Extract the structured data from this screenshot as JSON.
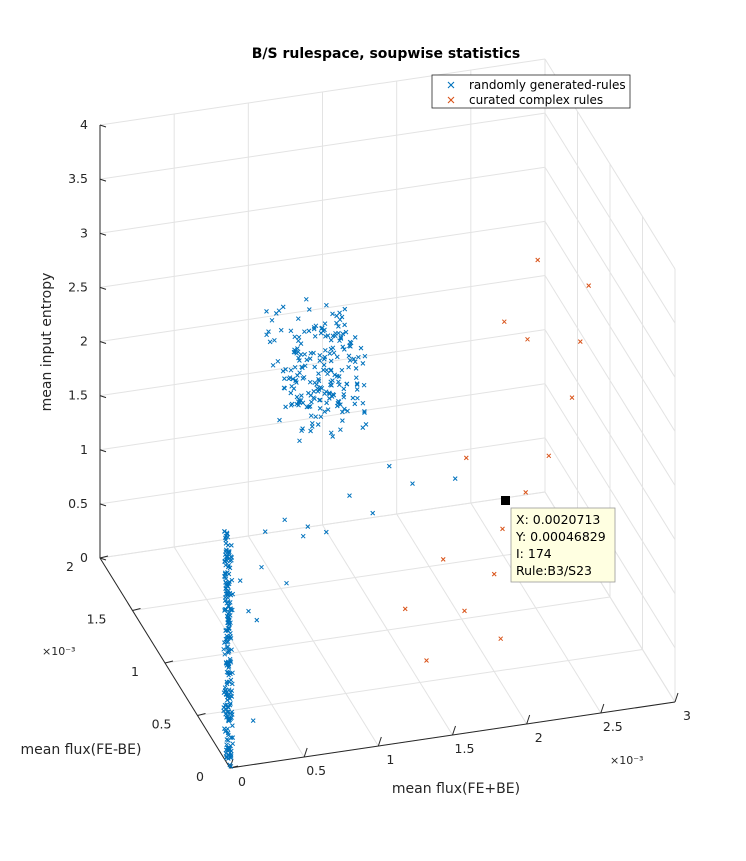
{
  "chart_data": {
    "type": "scatter",
    "projection": "3d",
    "title": "B/S rulespace, soupwise statistics",
    "xlabel": "mean flux(FE+BE)",
    "ylabel": "mean flux(FE-BE)",
    "zlabel": "mean input entropy",
    "x_exponent": "×10⁻³",
    "y_exponent": "×10⁻³",
    "xlim": [
      0,
      3
    ],
    "ylim": [
      0,
      2
    ],
    "zlim": [
      0,
      4
    ],
    "x_ticks": [
      "0",
      "0.5",
      "1",
      "1.5",
      "2",
      "2.5",
      "3"
    ],
    "y_ticks": [
      "0",
      "0.5",
      "1",
      "1.5",
      "2"
    ],
    "z_ticks": [
      "0",
      "0.5",
      "1",
      "1.5",
      "2",
      "2.5",
      "3",
      "3.5",
      "4"
    ],
    "grid": true,
    "legend_position": "top-right",
    "series": [
      {
        "name": "randomly generated-rules",
        "color": "#0072BD",
        "marker": "x",
        "points": [
          [
            0.1,
            0.2,
            0.5
          ],
          [
            0.2,
            0.3,
            1.4
          ],
          [
            0.3,
            0.4,
            1.0
          ],
          [
            0.4,
            0.5,
            0.8
          ],
          [
            0.5,
            0.6,
            1.5
          ],
          [
            0.6,
            0.5,
            1.1
          ],
          [
            0.8,
            0.7,
            1.3
          ],
          [
            1.0,
            0.8,
            1.2
          ],
          [
            1.2,
            0.9,
            1.4
          ],
          [
            1.4,
            1.0,
            1.1
          ],
          [
            0.9,
            1.0,
            2.2
          ],
          [
            1.0,
            1.1,
            2.5
          ],
          [
            1.1,
            1.2,
            2.6
          ],
          [
            1.6,
            1.2,
            1.3
          ],
          [
            1.8,
            1.3,
            1.0
          ],
          [
            2.0,
            1.1,
            1.2
          ],
          [
            0.2,
            0.1,
            0.3
          ],
          [
            0.3,
            0.2,
            1.6
          ],
          [
            0.5,
            0.3,
            1.9
          ],
          [
            0.7,
            0.4,
            1.7
          ]
        ],
        "clusters": [
          {
            "x": [
              0.0,
              0.02
            ],
            "y": [
              0.0,
              0.1
            ],
            "z": [
              0.0,
              2.1
            ],
            "label": "vertical band at mean flux ≈ 0"
          },
          {
            "x": [
              0.8,
              1.3
            ],
            "y": [
              0.8,
              1.3
            ],
            "z": [
              2.0,
              2.9
            ],
            "label": "dense cluster"
          }
        ]
      },
      {
        "name": "curated complex rules",
        "color": "#D95319",
        "marker": "x",
        "points": [
          [
            1.5,
            0.4,
            0.3
          ],
          [
            1.8,
            0.5,
            0.6
          ],
          [
            2.0,
            0.5,
            0.9
          ],
          [
            2.1,
            0.6,
            1.2
          ],
          [
            2.3,
            0.7,
            1.4
          ],
          [
            2.5,
            0.8,
            1.6
          ],
          [
            2.7,
            0.9,
            2.0
          ],
          [
            2.8,
            1.0,
            2.4
          ],
          [
            2.9,
            1.1,
            2.8
          ],
          [
            2.4,
            0.9,
            2.6
          ],
          [
            2.2,
            0.8,
            2.9
          ],
          [
            1.9,
            0.7,
            1.8
          ],
          [
            1.7,
            0.6,
            1.0
          ],
          [
            1.4,
            0.5,
            0.7
          ],
          [
            2.6,
            1.2,
            3.0
          ],
          [
            2.0,
            0.4,
            0.4
          ]
        ]
      }
    ],
    "datatip": {
      "x_label": "X: 0.0020713",
      "y_label": "Y: 0.00046829",
      "i_label": "I: 174",
      "rule_label": "Rule:B3/S23",
      "x": 2.0713,
      "y": 0.46829,
      "z": 0.0
    }
  }
}
